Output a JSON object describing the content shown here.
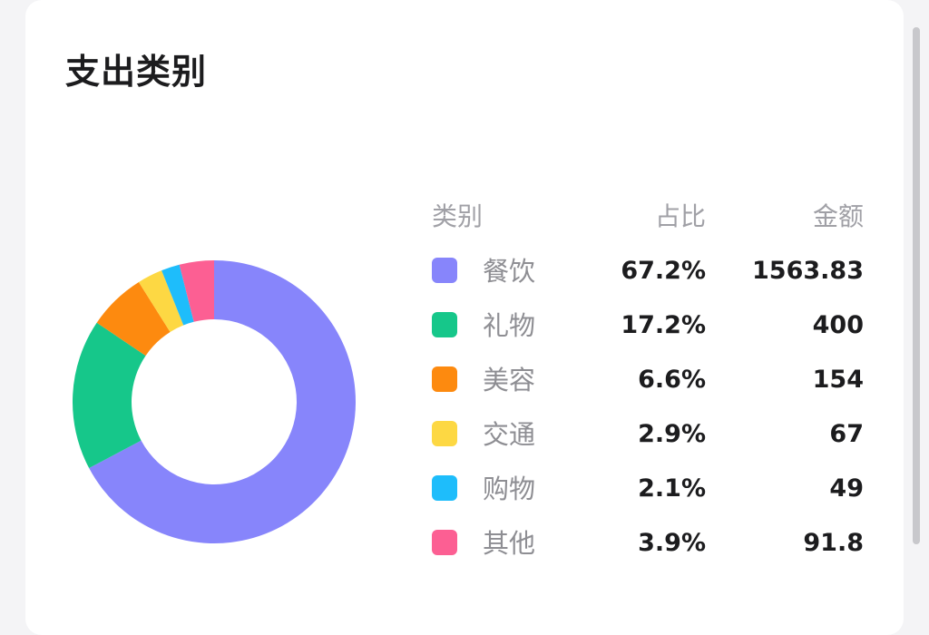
{
  "card": {
    "title": "支出类别"
  },
  "table": {
    "headers": {
      "category": "类别",
      "percent": "占比",
      "amount": "金额"
    },
    "rows": [
      {
        "name": "餐饮",
        "percent": "67.2%",
        "amount": "1563.83",
        "color": "#8785fb"
      },
      {
        "name": "礼物",
        "percent": "17.2%",
        "amount": "400",
        "color": "#16c78a"
      },
      {
        "name": "美容",
        "percent": "6.6%",
        "amount": "154",
        "color": "#fd8a0f"
      },
      {
        "name": "交通",
        "percent": "2.9%",
        "amount": "67",
        "color": "#fdd843"
      },
      {
        "name": "购物",
        "percent": "2.1%",
        "amount": "49",
        "color": "#1ebdfb"
      },
      {
        "name": "其他",
        "percent": "3.9%",
        "amount": "91.8",
        "color": "#fc5f93"
      }
    ]
  },
  "chart_data": {
    "type": "pie",
    "style": "donut",
    "categories": [
      "餐饮",
      "礼物",
      "美容",
      "交通",
      "购物",
      "其他"
    ],
    "values": [
      1563.83,
      400,
      154,
      67,
      49,
      91.8
    ],
    "percentages": [
      67.2,
      17.2,
      6.6,
      2.9,
      2.1,
      3.9
    ],
    "colors": [
      "#8785fb",
      "#16c78a",
      "#fd8a0f",
      "#fdd843",
      "#1ebdfb",
      "#fc5f93"
    ],
    "start_angle": "12 o'clock",
    "direction": "clockwise",
    "legend": "right"
  }
}
